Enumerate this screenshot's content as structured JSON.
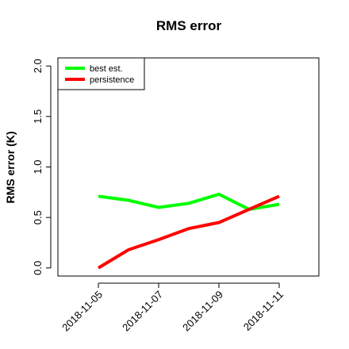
{
  "chart_data": {
    "type": "line",
    "title": "RMS error",
    "y_label": "RMS error (K)",
    "categories": [
      "2018-11-05",
      null,
      "2018-11-07",
      null,
      "2018-11-09",
      null,
      "2018-11-11"
    ],
    "category_colors": [
      "#000000",
      null,
      "#000000",
      null,
      "#000000",
      null,
      "#ff0000"
    ],
    "series": [
      {
        "name": "best est.",
        "color": "#00ff00",
        "values": [
          0.71,
          0.67,
          0.6,
          0.64,
          0.73,
          0.58,
          0.63
        ]
      },
      {
        "name": "persistence",
        "color": "#ff0000",
        "values": [
          0.0,
          0.18,
          0.28,
          0.39,
          0.45,
          0.58,
          0.71
        ]
      }
    ],
    "ylim": [
      -0.08,
      2.08
    ],
    "yticks": [
      {
        "value": 0,
        "label": "0.0"
      },
      {
        "value": 0.5,
        "label": "0.5"
      },
      {
        "value": 1,
        "label": "1.0"
      },
      {
        "value": 1.5,
        "label": "1.5"
      },
      {
        "value": 2,
        "label": "2.0"
      }
    ],
    "legend": "top-left"
  }
}
